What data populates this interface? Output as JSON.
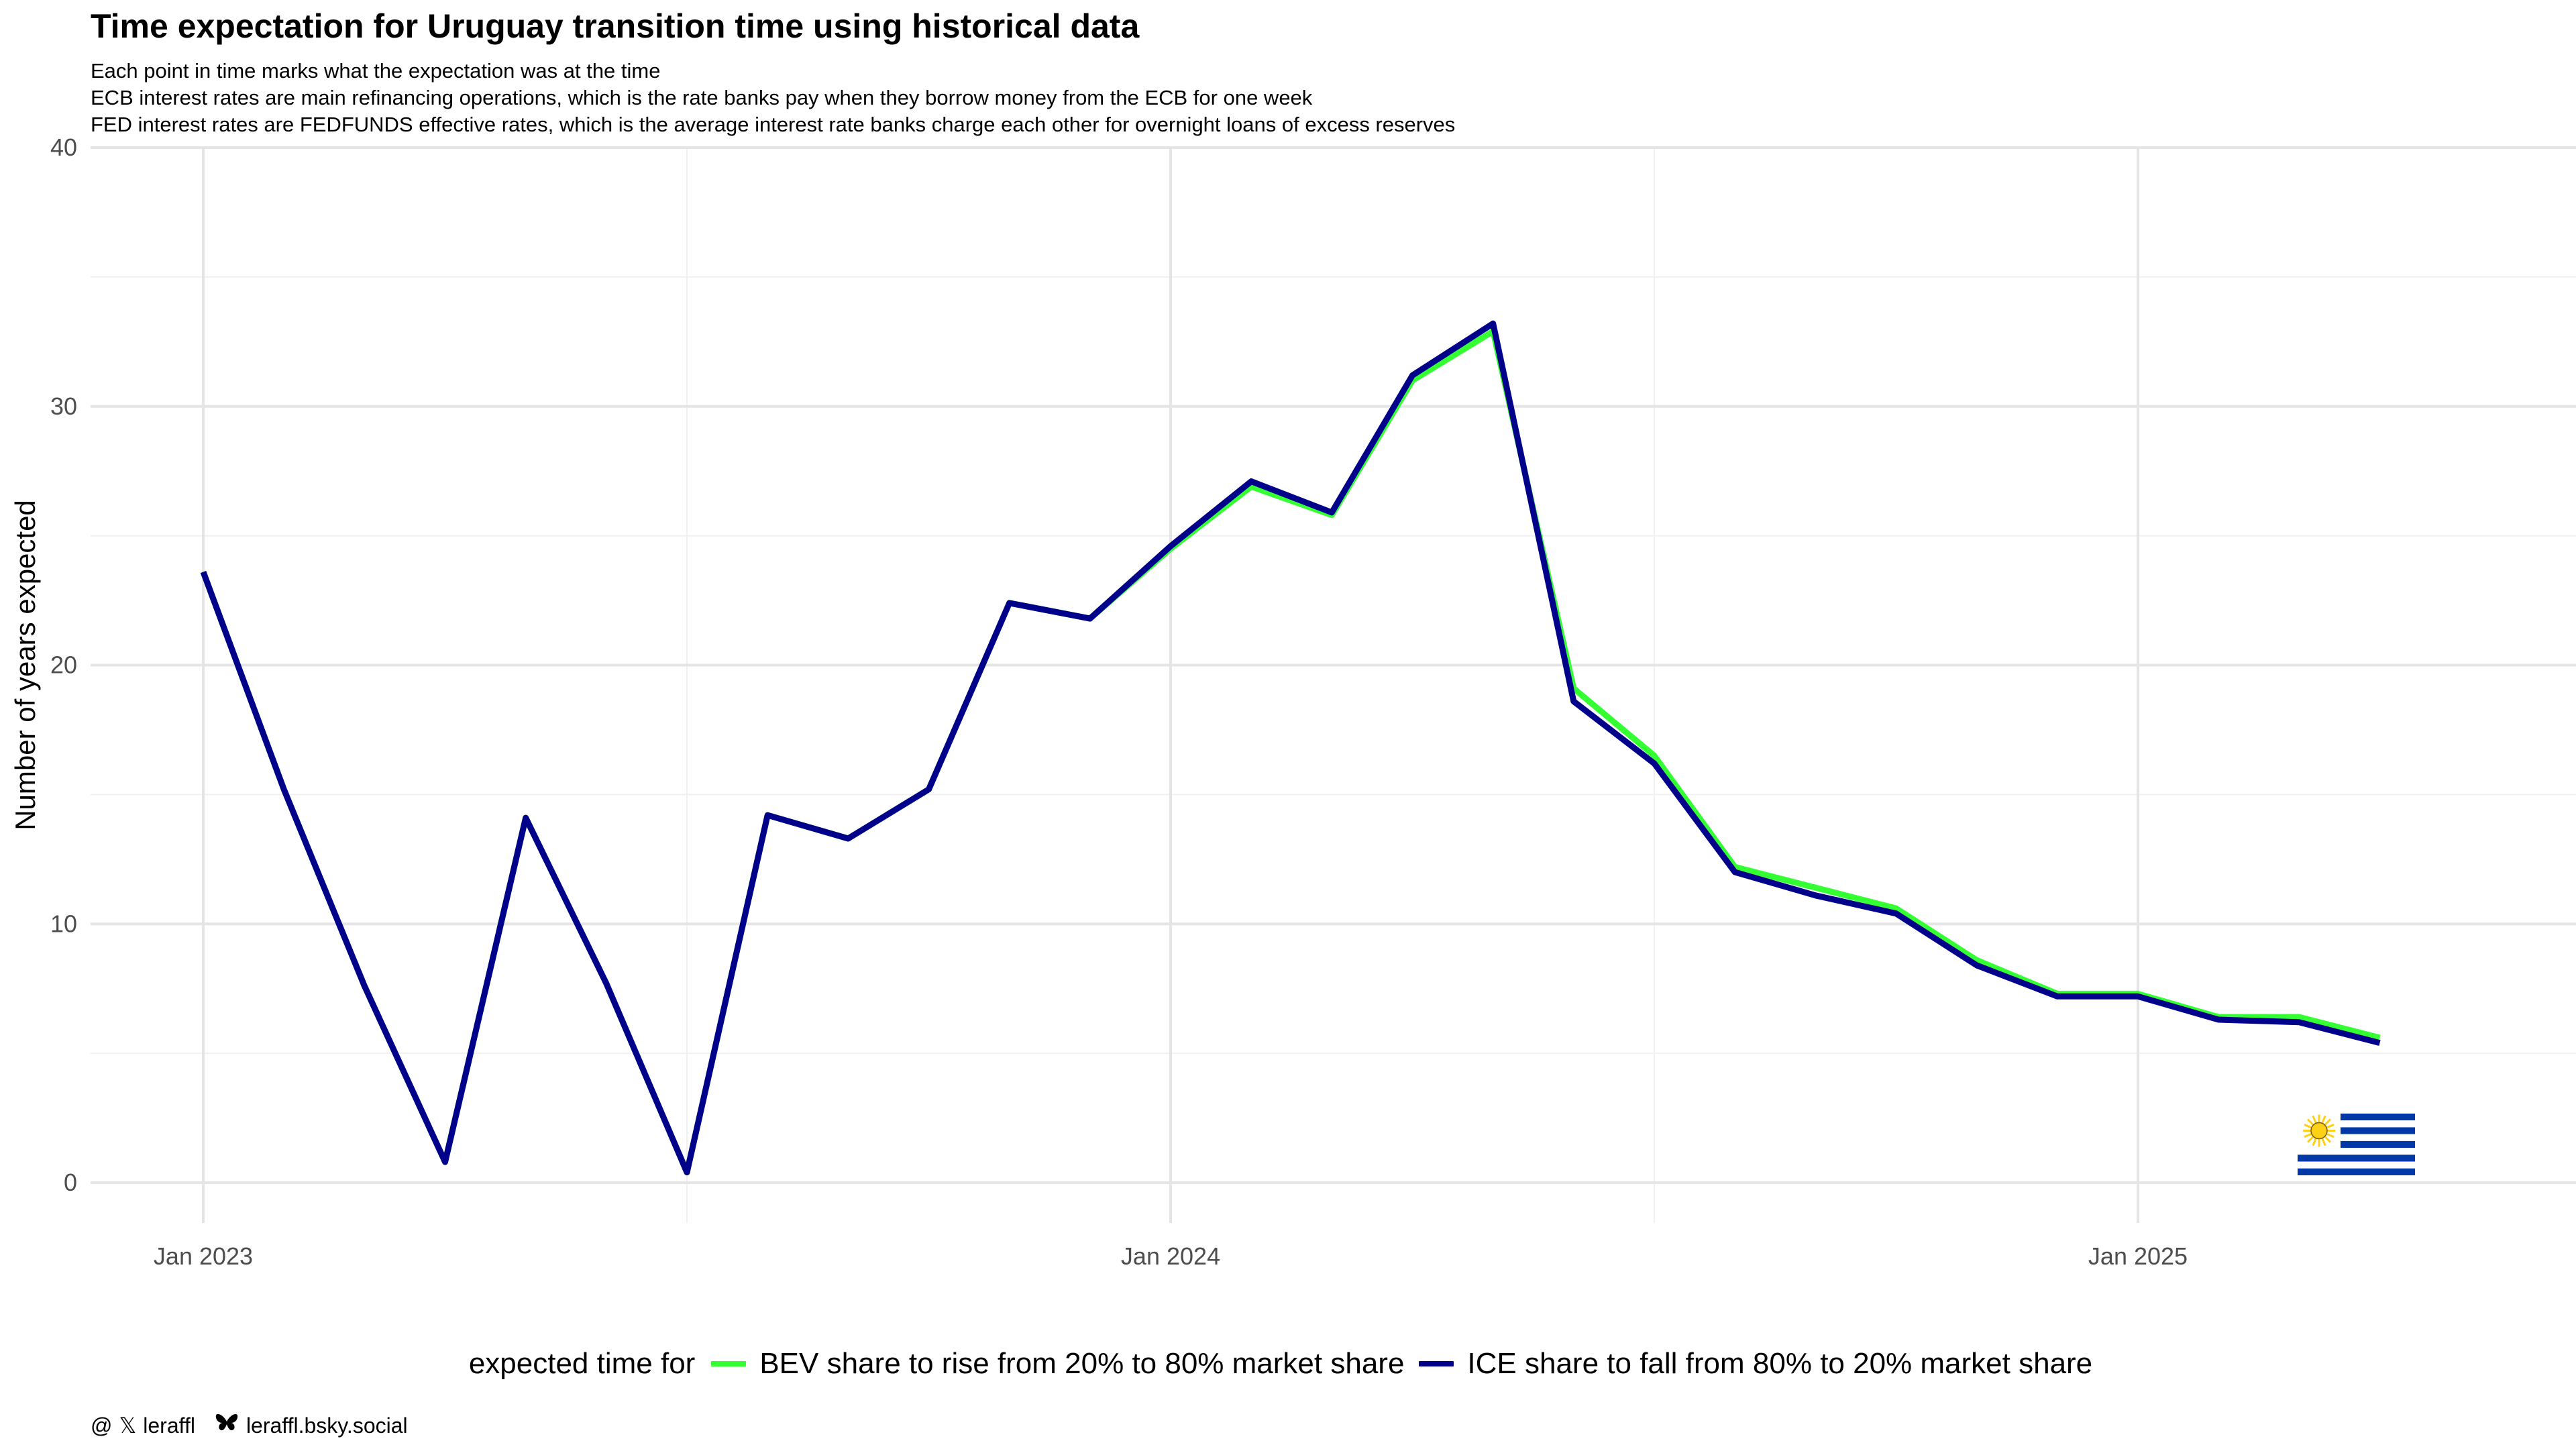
{
  "title": "Time expectation for Uruguay transition time using historical data",
  "subtitle_lines": [
    "Each point in time marks what the expectation was at the time",
    "ECB interest rates are main refinancing operations, which is the rate banks pay when they borrow money from the ECB for one week",
    "FED interest rates are FEDFUNDS effective rates, which is the average interest rate banks charge each other for overnight loans of excess reserves"
  ],
  "legend": {
    "title": "expected time for",
    "bev_label": "BEV share to rise from 20% to 80% market share",
    "ice_label": "ICE share to fall from 80% to 20% market share"
  },
  "credits": {
    "icon_names": [
      "threads-icon",
      "x-icon",
      "bluesky-butterfly-icon"
    ],
    "handle": "leraffl",
    "bluesky": "leraffl.bsky.social"
  },
  "flag": {
    "name": "uruguay-flag-icon",
    "stripe_color": "#0038a8",
    "sun_color": "#fcd116"
  },
  "chart_data": {
    "type": "line",
    "title": "Time expectation for Uruguay transition time using historical data",
    "xlabel": "",
    "ylabel": "Number of years expected",
    "x_tick_labels": [
      "Jan 2023",
      "Jan 2024",
      "Jan 2025"
    ],
    "x_tick_dates": [
      "2023-01",
      "2024-01",
      "2025-01"
    ],
    "y_ticks": [
      0,
      10,
      20,
      30,
      40
    ],
    "ylim": [
      0,
      40
    ],
    "grid": true,
    "legend_position": "bottom",
    "x": [
      "2023-01",
      "2023-02",
      "2023-03",
      "2023-04",
      "2023-05",
      "2023-06",
      "2023-07",
      "2023-08",
      "2023-09",
      "2023-10",
      "2023-11",
      "2023-12",
      "2024-01",
      "2024-02",
      "2024-03",
      "2024-04",
      "2024-05",
      "2024-06",
      "2024-07",
      "2024-08",
      "2024-09",
      "2024-10",
      "2024-11",
      "2024-12",
      "2025-01",
      "2025-02",
      "2025-03",
      "2025-04"
    ],
    "series": [
      {
        "name": "BEV share to rise from 20% to 80% market share",
        "color": "#33ff33",
        "values": [
          23.6,
          15.2,
          7.6,
          0.8,
          14.1,
          7.7,
          0.4,
          14.2,
          13.3,
          15.2,
          22.4,
          21.8,
          24.5,
          26.9,
          25.8,
          31.0,
          32.9,
          19.1,
          16.5,
          12.2,
          11.4,
          10.6,
          8.6,
          7.3,
          7.3,
          6.4,
          6.4,
          5.6
        ]
      },
      {
        "name": "ICE share to fall from 80% to 20% market share",
        "color": "#00008b",
        "values": [
          23.6,
          15.2,
          7.6,
          0.8,
          14.1,
          7.7,
          0.4,
          14.2,
          13.3,
          15.2,
          22.4,
          21.8,
          24.6,
          27.1,
          25.9,
          31.2,
          33.2,
          18.6,
          16.2,
          12.0,
          11.1,
          10.4,
          8.4,
          7.2,
          7.2,
          6.3,
          6.2,
          5.4
        ]
      }
    ]
  }
}
